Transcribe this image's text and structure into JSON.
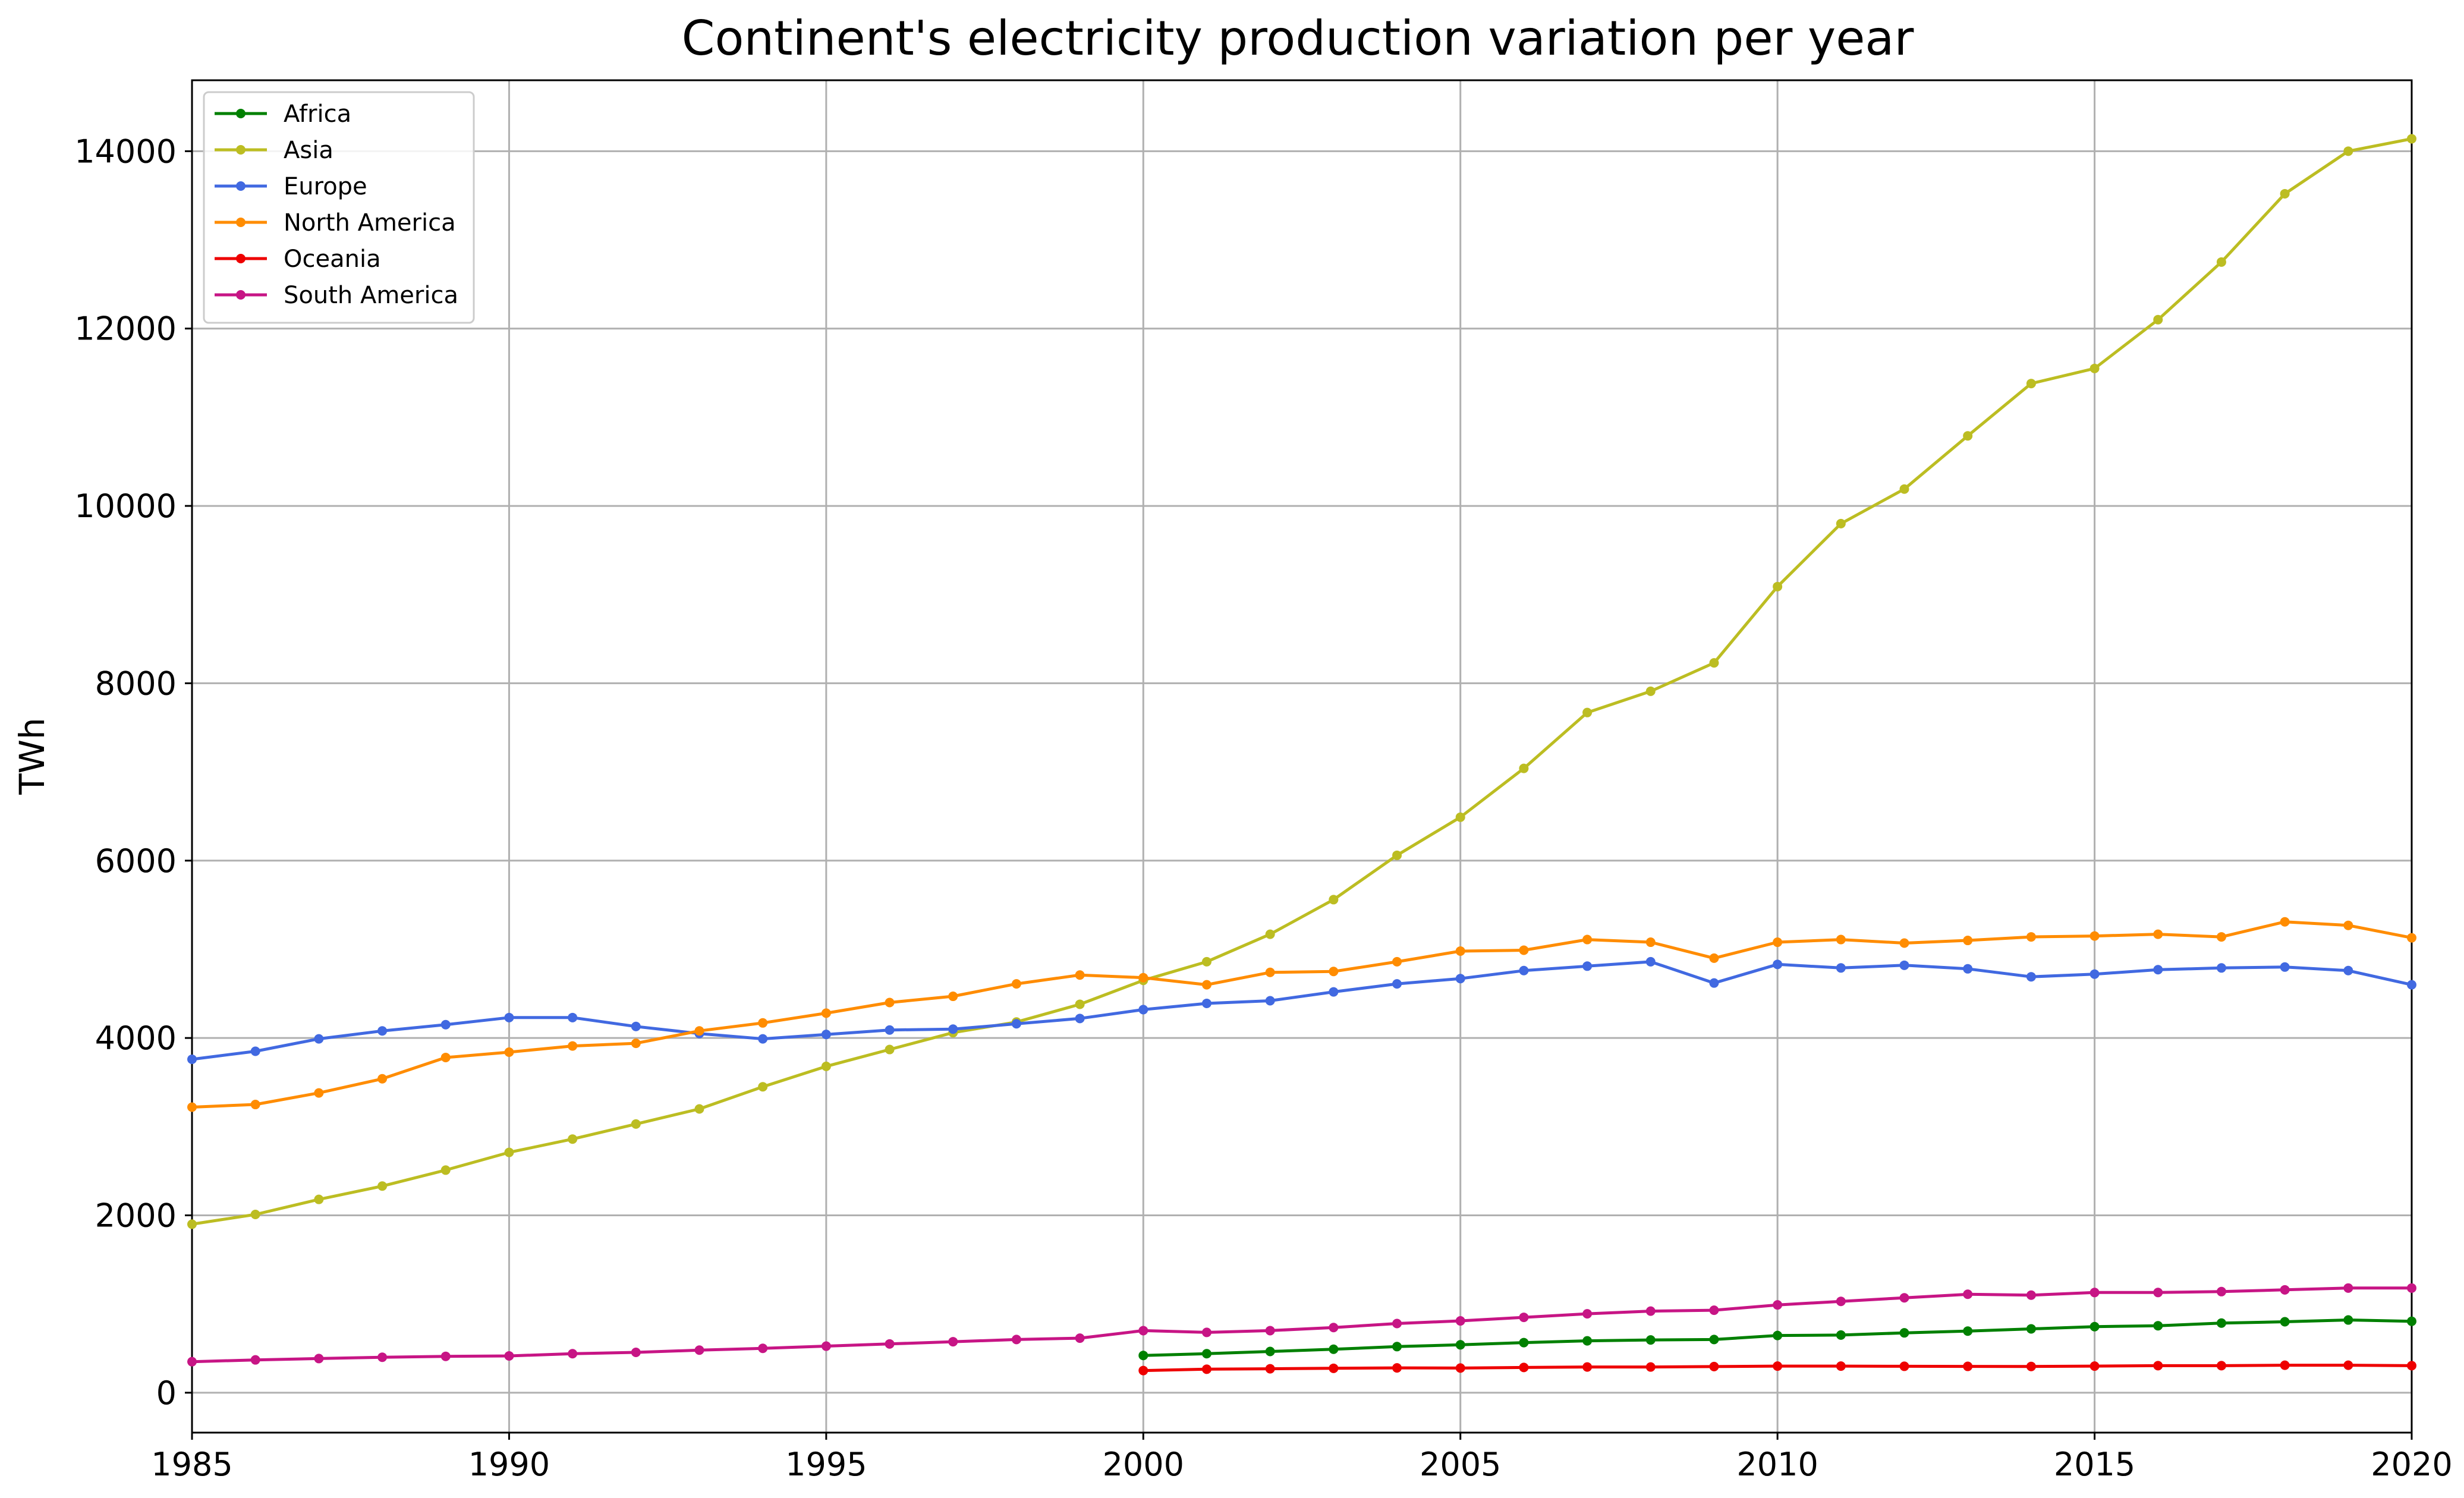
{
  "chart_data": {
    "type": "line",
    "title": "Continent's electricity production variation per year",
    "xlabel": "",
    "ylabel": "TWh",
    "xlim": [
      1985,
      2020
    ],
    "ylim": [
      -450,
      14800
    ],
    "x_ticks": [
      1985,
      1990,
      1995,
      2000,
      2005,
      2010,
      2015,
      2020
    ],
    "y_ticks": [
      0,
      2000,
      4000,
      6000,
      8000,
      10000,
      12000,
      14000
    ],
    "grid": true,
    "legend_position": "upper left",
    "series": [
      {
        "name": "Africa",
        "color": "#008000",
        "x": [
          2000,
          2001,
          2002,
          2003,
          2004,
          2005,
          2006,
          2007,
          2008,
          2009,
          2010,
          2011,
          2012,
          2013,
          2014,
          2015,
          2016,
          2017,
          2018,
          2019,
          2020
        ],
        "values": [
          420,
          440,
          465,
          490,
          520,
          540,
          565,
          585,
          595,
          600,
          645,
          650,
          675,
          695,
          720,
          745,
          755,
          785,
          800,
          820,
          805
        ]
      },
      {
        "name": "Asia",
        "color": "#bcbd22",
        "x": [
          1985,
          1986,
          1987,
          1988,
          1989,
          1990,
          1991,
          1992,
          1993,
          1994,
          1995,
          1996,
          1997,
          1998,
          1999,
          2000,
          2001,
          2002,
          2003,
          2004,
          2005,
          2006,
          2007,
          2008,
          2009,
          2010,
          2011,
          2012,
          2013,
          2014,
          2015,
          2016,
          2017,
          2018,
          2019,
          2020
        ],
        "values": [
          1900,
          2010,
          2180,
          2330,
          2510,
          2710,
          2860,
          3030,
          3200,
          3450,
          3680,
          3870,
          4060,
          4180,
          4380,
          4650,
          4860,
          5170,
          5560,
          6060,
          6490,
          7040,
          7670,
          7910,
          8230,
          9090,
          9800,
          10190,
          10790,
          11380,
          11550,
          12100,
          12750,
          13520,
          14000,
          14140
        ]
      },
      {
        "name": "Europe",
        "color": "#4169e1",
        "x": [
          1985,
          1986,
          1987,
          1988,
          1989,
          1990,
          1991,
          1992,
          1993,
          1994,
          1995,
          1996,
          1997,
          1998,
          1999,
          2000,
          2001,
          2002,
          2003,
          2004,
          2005,
          2006,
          2007,
          2008,
          2009,
          2010,
          2011,
          2012,
          2013,
          2014,
          2015,
          2016,
          2017,
          2018,
          2019,
          2020
        ],
        "values": [
          3760,
          3850,
          3990,
          4080,
          4150,
          4230,
          4230,
          4130,
          4050,
          3990,
          4040,
          4090,
          4100,
          4160,
          4220,
          4320,
          4390,
          4420,
          4520,
          4610,
          4670,
          4760,
          4810,
          4860,
          4620,
          4830,
          4790,
          4820,
          4780,
          4690,
          4720,
          4770,
          4790,
          4800,
          4760,
          4600
        ]
      },
      {
        "name": "North America",
        "color": "#ff8c00",
        "x": [
          1985,
          1986,
          1987,
          1988,
          1989,
          1990,
          1991,
          1992,
          1993,
          1994,
          1995,
          1996,
          1997,
          1998,
          1999,
          2000,
          2001,
          2002,
          2003,
          2004,
          2005,
          2006,
          2007,
          2008,
          2009,
          2010,
          2011,
          2012,
          2013,
          2014,
          2015,
          2016,
          2017,
          2018,
          2019,
          2020
        ],
        "values": [
          3220,
          3250,
          3380,
          3540,
          3780,
          3840,
          3910,
          3940,
          4080,
          4170,
          4280,
          4400,
          4470,
          4610,
          4710,
          4680,
          4600,
          4740,
          4750,
          4860,
          4980,
          4990,
          5110,
          5080,
          4900,
          5080,
          5110,
          5070,
          5100,
          5140,
          5150,
          5170,
          5140,
          5310,
          5270,
          5130
        ]
      },
      {
        "name": "Oceania",
        "color": "#ee0000",
        "x": [
          2000,
          2001,
          2002,
          2003,
          2004,
          2005,
          2006,
          2007,
          2008,
          2009,
          2010,
          2011,
          2012,
          2013,
          2014,
          2015,
          2016,
          2017,
          2018,
          2019,
          2020
        ],
        "values": [
          250,
          265,
          270,
          275,
          280,
          278,
          285,
          290,
          290,
          295,
          300,
          300,
          298,
          297,
          296,
          300,
          305,
          305,
          310,
          310,
          305
        ]
      },
      {
        "name": "South America",
        "color": "#c71585",
        "x": [
          1985,
          1986,
          1987,
          1988,
          1989,
          1990,
          1991,
          1992,
          1993,
          1994,
          1995,
          1996,
          1997,
          1998,
          1999,
          2000,
          2001,
          2002,
          2003,
          2004,
          2005,
          2006,
          2007,
          2008,
          2009,
          2010,
          2011,
          2012,
          2013,
          2014,
          2015,
          2016,
          2017,
          2018,
          2019,
          2020
        ],
        "values": [
          350,
          370,
          385,
          400,
          410,
          415,
          440,
          455,
          480,
          500,
          525,
          550,
          575,
          600,
          615,
          700,
          680,
          700,
          735,
          780,
          810,
          850,
          890,
          920,
          930,
          990,
          1030,
          1070,
          1110,
          1100,
          1130,
          1130,
          1140,
          1160,
          1180,
          1180
        ]
      }
    ]
  }
}
